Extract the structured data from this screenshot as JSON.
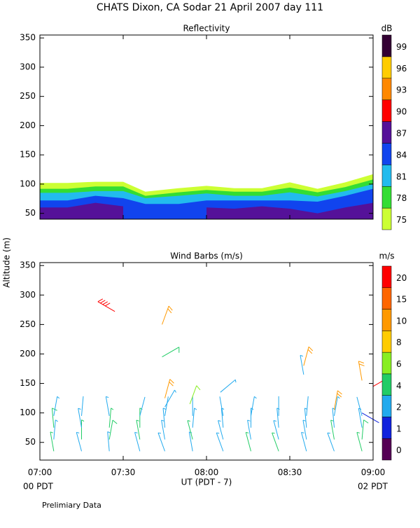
{
  "title": "CHATS Dixon, CA  Sodar  21 April 2007  day 111",
  "y_label": "Altitude (m)",
  "x_label": "UT  (PDT - 7)",
  "left_note": "00 PDT",
  "right_note": "02 PDT",
  "footer": "Prelimiary Data",
  "chart_data": [
    {
      "type": "contour",
      "title": "Reflectivity",
      "x": [
        0,
        10,
        20,
        30,
        38,
        50,
        60,
        70,
        80,
        90,
        100,
        110,
        120
      ],
      "xlim": [
        0,
        120
      ],
      "xticks": [
        0,
        30,
        60,
        90,
        120
      ],
      "ylim": [
        40,
        355
      ],
      "yticks": [
        50,
        100,
        150,
        200,
        250,
        300,
        350
      ],
      "colorbar": {
        "label": "dB",
        "levels": [
          75,
          78,
          81,
          84,
          87,
          90,
          93,
          96,
          99
        ],
        "colors": [
          "#ccff33",
          "#33dd33",
          "#22bbee",
          "#1144ee",
          "#551199",
          "#ff0000",
          "#ff8800",
          "#ffcc00",
          "#330033"
        ]
      },
      "series": [
        {
          "values": [
            102,
            102,
            104,
            104,
            87,
            93,
            97,
            93,
            93,
            103,
            92,
            103,
            117
          ]
        },
        {
          "values": [
            92,
            92,
            96,
            96,
            80,
            86,
            90,
            87,
            87,
            94,
            86,
            95,
            108
          ]
        },
        {
          "values": [
            85,
            85,
            88,
            88,
            76,
            80,
            84,
            80,
            80,
            86,
            79,
            88,
            100
          ]
        },
        {
          "values": [
            72,
            72,
            80,
            76,
            66,
            66,
            72,
            72,
            72,
            72,
            70,
            80,
            92
          ]
        },
        {
          "values": [
            60,
            60,
            68,
            62,
            null,
            null,
            60,
            58,
            62,
            58,
            50,
            60,
            68
          ]
        }
      ]
    },
    {
      "type": "barbs",
      "title": "Wind Barbs (m/s)",
      "xlim": [
        0,
        120
      ],
      "xticks": [
        {
          "value": 0,
          "label": "07:00"
        },
        {
          "value": 30,
          "label": "07:30"
        },
        {
          "value": 60,
          "label": "08:00"
        },
        {
          "value": 90,
          "label": "08:30"
        },
        {
          "value": 120,
          "label": "09:00"
        }
      ],
      "ylim": [
        20,
        355
      ],
      "yticks": [
        50,
        100,
        150,
        200,
        250,
        300,
        350
      ],
      "colorbar": {
        "label": "m/s",
        "levels": [
          0,
          1,
          2,
          4,
          6,
          8,
          10,
          15,
          20
        ],
        "colors": [
          "#550055",
          "#1122dd",
          "#22aaee",
          "#22cc66",
          "#88ee22",
          "#ffcc00",
          "#ff9900",
          "#ff6600",
          "#ff0000"
        ]
      },
      "x": [
        5,
        5,
        5,
        5,
        15,
        15,
        15,
        15,
        25,
        25,
        25,
        25,
        36,
        36,
        36,
        36,
        45,
        45,
        45,
        45,
        55,
        55,
        55,
        55,
        66,
        66,
        66,
        66,
        76,
        76,
        76,
        76,
        86,
        86,
        86,
        86,
        96,
        96,
        96,
        96,
        106,
        106,
        106,
        106,
        116,
        116,
        116,
        116,
        27,
        44,
        44,
        45,
        45,
        54,
        65,
        95,
        95,
        106,
        116,
        116,
        120
      ],
      "y": [
        35,
        55,
        75,
        95,
        35,
        55,
        75,
        95,
        35,
        55,
        75,
        95,
        35,
        55,
        75,
        95,
        35,
        55,
        75,
        95,
        35,
        55,
        75,
        95,
        35,
        55,
        75,
        95,
        35,
        55,
        75,
        95,
        35,
        55,
        75,
        95,
        35,
        55,
        75,
        95,
        35,
        55,
        75,
        95,
        35,
        55,
        75,
        95,
        272,
        250,
        195,
        125,
        110,
        115,
        135,
        180,
        165,
        105,
        155,
        100,
        145
      ],
      "speed": [
        4,
        3,
        5,
        3,
        3,
        4,
        3,
        2,
        3,
        5,
        4,
        3,
        3,
        4,
        4,
        2,
        3,
        3,
        3,
        2,
        3,
        4,
        3,
        2,
        3,
        3,
        3,
        2,
        4,
        3,
        3,
        3,
        4,
        3,
        3,
        2,
        3,
        3,
        3,
        2,
        3,
        4,
        3,
        3,
        4,
        5,
        3,
        2,
        21,
        12,
        5,
        12,
        3,
        6,
        3,
        12,
        3,
        12,
        12,
        1,
        21
      ],
      "direction": [
        350,
        5,
        355,
        10,
        345,
        0,
        350,
        5,
        355,
        10,
        5,
        350,
        345,
        350,
        0,
        15,
        340,
        350,
        355,
        10,
        350,
        345,
        5,
        0,
        340,
        345,
        355,
        350,
        345,
        350,
        0,
        10,
        340,
        345,
        355,
        0,
        345,
        350,
        355,
        5,
        340,
        350,
        355,
        10,
        345,
        5,
        350,
        345,
        300,
        20,
        60,
        15,
        30,
        20,
        50,
        15,
        350,
        10,
        350,
        120,
        60
      ]
    }
  ]
}
